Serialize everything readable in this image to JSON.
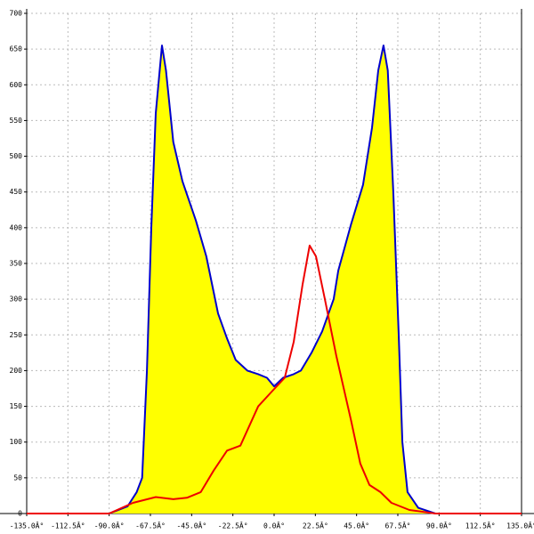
{
  "chart_data": {
    "type": "line",
    "xlim": [
      -135,
      135
    ],
    "ylim": [
      0,
      700
    ],
    "xticks": [
      {
        "value": -135,
        "label": "-135.0Â°"
      },
      {
        "value": -112.5,
        "label": "-112.5Â°"
      },
      {
        "value": -90,
        "label": "-90.0Â°"
      },
      {
        "value": -67.5,
        "label": "-67.5Â°"
      },
      {
        "value": -45,
        "label": "-45.0Â°"
      },
      {
        "value": -22.5,
        "label": "-22.5Â°"
      },
      {
        "value": 0,
        "label": "0.0Â°"
      },
      {
        "value": 22.5,
        "label": "22.5Â°"
      },
      {
        "value": 45,
        "label": "45.0Â°"
      },
      {
        "value": 67.5,
        "label": "67.5Â°"
      },
      {
        "value": 90,
        "label": "90.0Â°"
      },
      {
        "value": 112.5,
        "label": "112.5Â°"
      },
      {
        "value": 135,
        "label": "135.0Â°"
      }
    ],
    "yticks": [
      0,
      50,
      100,
      150,
      200,
      250,
      300,
      350,
      400,
      450,
      500,
      550,
      600,
      650,
      700
    ],
    "grid": true,
    "series": [
      {
        "color": "#0000cc",
        "fill": "#ffff00",
        "x": [
          -90,
          -80,
          -75,
          -72,
          -69.4,
          -67,
          -64.6,
          -61.2,
          -59,
          -55,
          -50,
          -42.7,
          -37,
          -30.6,
          -25.7,
          -21,
          -14.6,
          -8.7,
          -3.9,
          0,
          4.9,
          10.7,
          14.6,
          20.4,
          26.2,
          32.5,
          35,
          42,
          48.5,
          53.4,
          56.8,
          59.7,
          62,
          65,
          68,
          70,
          72.8,
          78.6,
          88
        ],
        "values": [
          0,
          10,
          30,
          50,
          200,
          400,
          560,
          655,
          620,
          520,
          465,
          410,
          360,
          280,
          245,
          215,
          200,
          195,
          190,
          178,
          190,
          195,
          200,
          225,
          255,
          300,
          340,
          405,
          460,
          540,
          620,
          655,
          620,
          450,
          250,
          100,
          30,
          8,
          0
        ]
      },
      {
        "color": "#ee0000",
        "x": [
          -135,
          -90,
          -77,
          -64.6,
          -55,
          -47.6,
          -40,
          -33,
          -25.7,
          -18.4,
          -8.7,
          -1.5,
          5.8,
          10.7,
          15.5,
          19.4,
          22.8,
          27.7,
          34,
          42,
          47,
          52,
          58,
          64,
          73.8,
          88,
          135
        ],
        "values": [
          0,
          0,
          15,
          23,
          20,
          22,
          30,
          60,
          88,
          95,
          150,
          170,
          190,
          240,
          320,
          375,
          360,
          300,
          220,
          130,
          70,
          40,
          30,
          15,
          5,
          0,
          0
        ]
      }
    ]
  }
}
